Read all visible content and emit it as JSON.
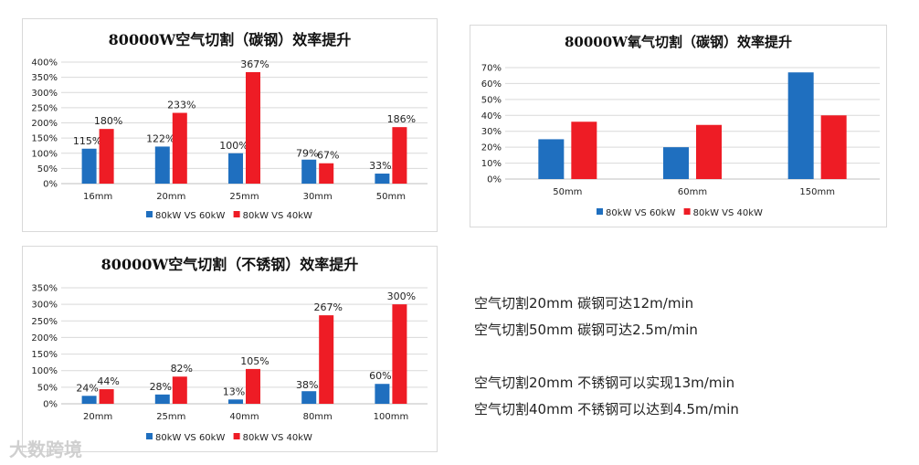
{
  "chart_data": [
    {
      "type": "bar",
      "title": "80000W空气切割（碳钢）效率提升",
      "categories": [
        "16mm",
        "20mm",
        "25mm",
        "30mm",
        "50mm"
      ],
      "series": [
        {
          "name": "80kW VS 60kW",
          "values": [
            115,
            122,
            100,
            79,
            33
          ],
          "labels": [
            "115%",
            "122%",
            "100%",
            "79%",
            "33%"
          ],
          "color": "#1f6fbf"
        },
        {
          "name": "80kW VS 40kW",
          "values": [
            180,
            233,
            367,
            67,
            186
          ],
          "labels": [
            "180%",
            "233%",
            "367%",
            "67%",
            "186%"
          ],
          "color": "#ee1c25"
        }
      ],
      "yticks": [
        "0%",
        "50%",
        "100%",
        "150%",
        "200%",
        "250%",
        "300%",
        "350%",
        "400%"
      ],
      "ylim": [
        0,
        400
      ],
      "grid": true,
      "legend": "bottom"
    },
    {
      "type": "bar",
      "title": "80000W氧气切割（碳钢）效率提升",
      "categories": [
        "50mm",
        "60mm",
        "150mm"
      ],
      "series": [
        {
          "name": "80kW VS 60kW",
          "values": [
            25,
            20,
            67
          ],
          "color": "#1f6fbf"
        },
        {
          "name": "80kW VS 40kW",
          "values": [
            36,
            34,
            40
          ],
          "color": "#ee1c25"
        }
      ],
      "yticks": [
        "0%",
        "10%",
        "20%",
        "30%",
        "40%",
        "50%",
        "60%",
        "70%"
      ],
      "ylim": [
        0,
        70
      ],
      "grid": true,
      "legend": "bottom"
    },
    {
      "type": "bar",
      "title": "80000W空气切割（不锈钢）效率提升",
      "categories": [
        "20mm",
        "25mm",
        "40mm",
        "80mm",
        "100mm"
      ],
      "series": [
        {
          "name": "80kW VS 60kW",
          "values": [
            24,
            28,
            13,
            38,
            60
          ],
          "labels": [
            "24%",
            "28%",
            "13%",
            "38%",
            "60%"
          ],
          "color": "#1f6fbf"
        },
        {
          "name": "80kW VS 40kW",
          "values": [
            44,
            82,
            105,
            267,
            300
          ],
          "labels": [
            "44%",
            "82%",
            "105%",
            "267%",
            "300%"
          ],
          "color": "#ee1c25"
        }
      ],
      "yticks": [
        "0%",
        "50%",
        "100%",
        "150%",
        "200%",
        "250%",
        "300%",
        "350%"
      ],
      "ylim": [
        0,
        350
      ],
      "grid": true,
      "legend": "bottom"
    }
  ],
  "notes": [
    "空气切割20mm  碳钢可达12m/min",
    "空气切割50mm  碳钢可达2.5m/min",
    "空气切割20mm 不锈钢可以实现13m/min",
    "空气切割40mm 不锈钢可以达到4.5m/min"
  ],
  "watermark": "大数跨境"
}
